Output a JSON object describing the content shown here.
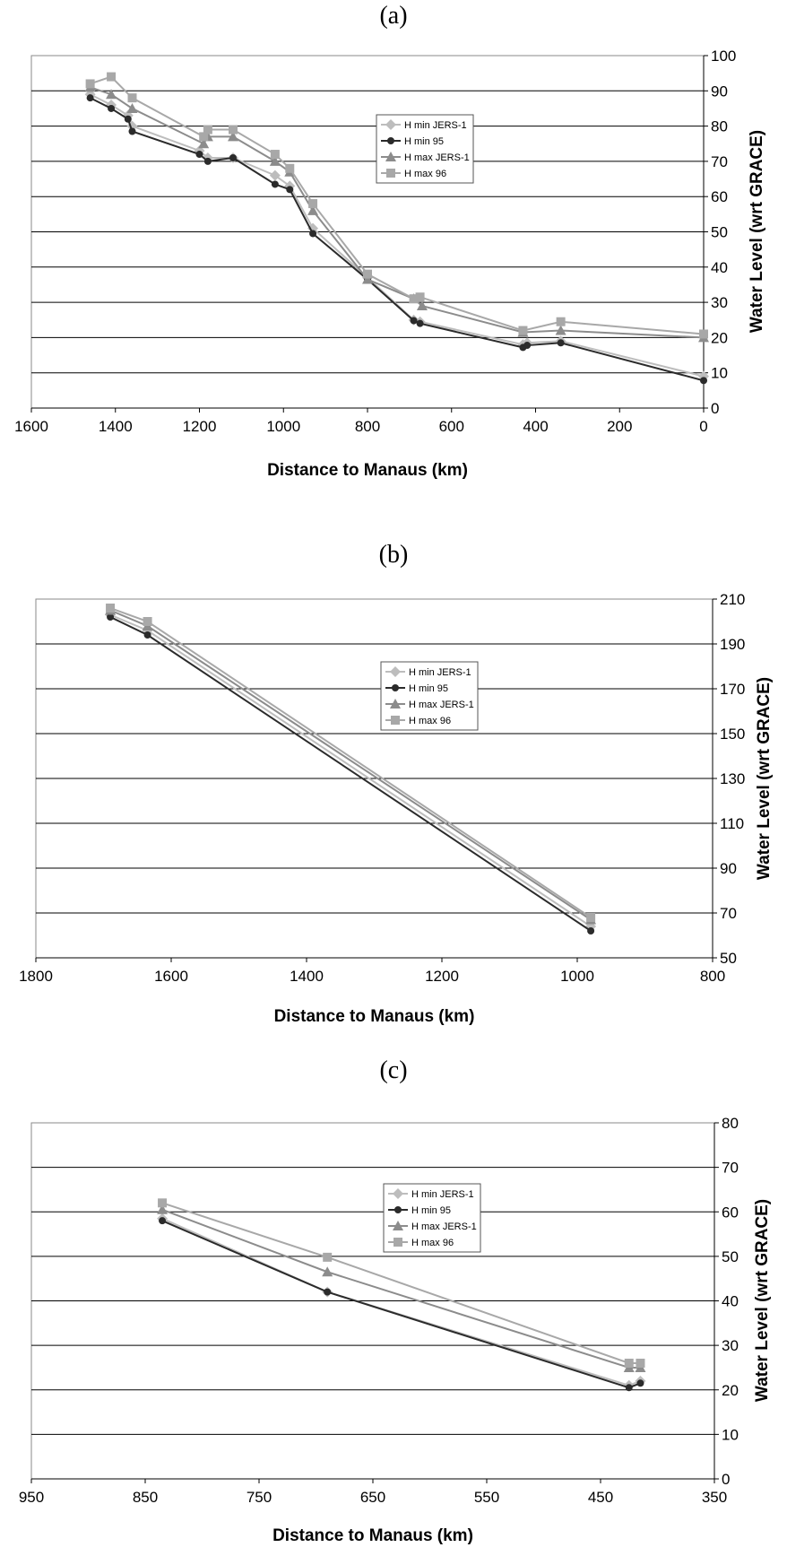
{
  "chart_data": [
    {
      "type": "line",
      "title": "(a)",
      "xlabel": "Distance to Manaus (km)",
      "ylabel": "Water Level (wrt GRACE)",
      "xlim": [
        1600,
        0
      ],
      "ylim": [
        0,
        100
      ],
      "xticks": [
        1600,
        1400,
        1200,
        1000,
        800,
        600,
        400,
        200,
        0
      ],
      "yticks": [
        0,
        10,
        20,
        30,
        40,
        50,
        60,
        70,
        80,
        90,
        100
      ],
      "grid": "horizontal",
      "legend_position": "center",
      "series": [
        {
          "name": "H min JERS-1",
          "marker": "diamond",
          "color": "#bdbdbd",
          "x": [
            1460,
            1410,
            1370,
            1360,
            1200,
            1180,
            1120,
            1020,
            985,
            930,
            800,
            690,
            675,
            430,
            420,
            340,
            0
          ],
          "y": [
            89,
            86,
            83,
            80,
            73,
            71,
            71,
            66,
            63,
            51,
            37,
            25,
            24.5,
            18,
            18.5,
            19,
            9
          ]
        },
        {
          "name": "H min 95",
          "marker": "circle",
          "color": "#2b2b2b",
          "x": [
            1460,
            1410,
            1370,
            1360,
            1200,
            1180,
            1120,
            1020,
            985,
            930,
            800,
            690,
            675,
            430,
            420,
            340,
            0
          ],
          "y": [
            88,
            85,
            82,
            78.5,
            72,
            70,
            71,
            63.5,
            62,
            49.5,
            36.5,
            24.8,
            24,
            17.2,
            17.8,
            18.5,
            7.8
          ]
        },
        {
          "name": "H max JERS-1",
          "marker": "triangle",
          "color": "#8c8c8c",
          "x": [
            1460,
            1410,
            1360,
            1190,
            1180,
            1120,
            1020,
            985,
            930,
            800,
            690,
            670,
            430,
            340,
            0
          ],
          "y": [
            91,
            89,
            85,
            75,
            77,
            77,
            70,
            67,
            56,
            36.5,
            31,
            29,
            21.5,
            22,
            20
          ]
        },
        {
          "name": "H max 96",
          "marker": "square",
          "color": "#a8a8a8",
          "x": [
            1460,
            1410,
            1360,
            1190,
            1180,
            1120,
            1020,
            985,
            930,
            800,
            690,
            675,
            430,
            340,
            0
          ],
          "y": [
            92,
            94,
            88,
            77,
            79,
            79,
            72,
            68,
            58,
            38,
            31,
            31.5,
            22,
            24.5,
            21
          ]
        }
      ]
    },
    {
      "type": "line",
      "title": "(b)",
      "xlabel": "Distance to Manaus (km)",
      "ylabel": "Water Level (wrt GRACE)",
      "xlim": [
        1800,
        800
      ],
      "ylim": [
        50,
        210
      ],
      "xticks": [
        1800,
        1600,
        1400,
        1200,
        1000,
        800
      ],
      "yticks": [
        50,
        70,
        90,
        110,
        130,
        150,
        170,
        190,
        210
      ],
      "grid": "horizontal",
      "legend_position": "center",
      "series": [
        {
          "name": "H min JERS-1",
          "marker": "diamond",
          "color": "#bdbdbd",
          "x": [
            1690,
            1635,
            980
          ],
          "y": [
            203,
            196,
            64
          ]
        },
        {
          "name": "H min 95",
          "marker": "circle",
          "color": "#2b2b2b",
          "x": [
            1690,
            1635,
            980
          ],
          "y": [
            202,
            194,
            62
          ]
        },
        {
          "name": "H max JERS-1",
          "marker": "triangle",
          "color": "#8c8c8c",
          "x": [
            1690,
            1635,
            980
          ],
          "y": [
            205,
            198,
            67
          ]
        },
        {
          "name": "H max 96",
          "marker": "square",
          "color": "#a8a8a8",
          "x": [
            1690,
            1635,
            980
          ],
          "y": [
            206,
            200,
            68
          ]
        }
      ]
    },
    {
      "type": "line",
      "title": "(c)",
      "xlabel": "Distance to Manaus (km)",
      "ylabel": "Water Level (wrt GRACE)",
      "xlim": [
        950,
        350
      ],
      "ylim": [
        0,
        80
      ],
      "xticks": [
        950,
        850,
        750,
        650,
        550,
        450,
        350
      ],
      "yticks": [
        0,
        10,
        20,
        30,
        40,
        50,
        60,
        70,
        80
      ],
      "grid": "horizontal",
      "legend_position": "center",
      "series": [
        {
          "name": "H min JERS-1",
          "marker": "diamond",
          "color": "#bdbdbd",
          "x": [
            835,
            690,
            425,
            415
          ],
          "y": [
            58.5,
            42,
            21,
            22
          ]
        },
        {
          "name": "H min 95",
          "marker": "circle",
          "color": "#2b2b2b",
          "x": [
            835,
            690,
            425,
            415
          ],
          "y": [
            58,
            42,
            20.5,
            21.5
          ]
        },
        {
          "name": "H max JERS-1",
          "marker": "triangle",
          "color": "#8c8c8c",
          "x": [
            835,
            690,
            425,
            415
          ],
          "y": [
            60.5,
            46.5,
            25,
            25
          ]
        },
        {
          "name": "H max 96",
          "marker": "square",
          "color": "#a8a8a8",
          "x": [
            835,
            690,
            425,
            415
          ],
          "y": [
            62,
            49.8,
            26,
            26
          ]
        }
      ]
    }
  ]
}
